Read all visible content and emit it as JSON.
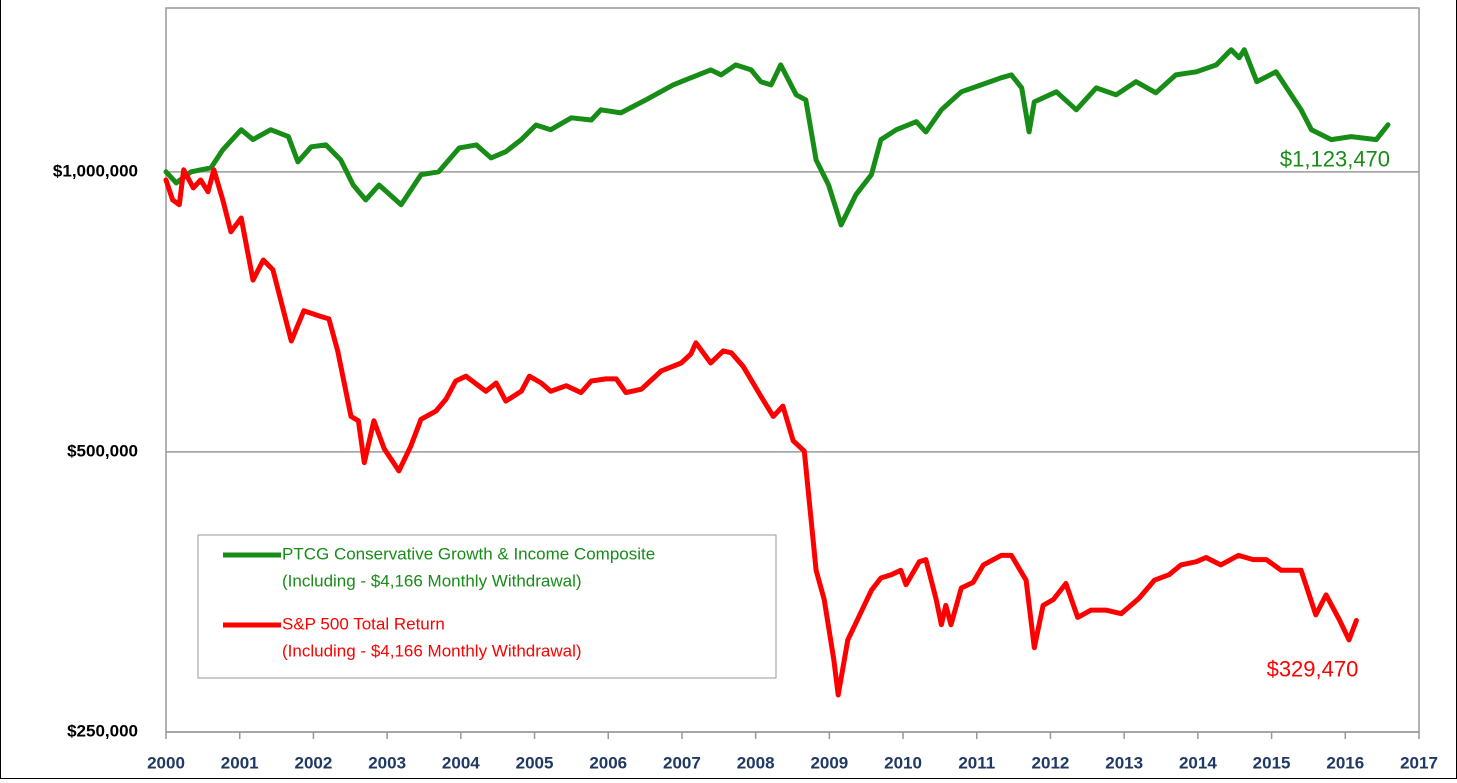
{
  "chart_data": {
    "type": "line",
    "log_scale": true,
    "grid": true,
    "legend": "lower left",
    "xlim": [
      2000,
      2017
    ],
    "xticks": [
      2000,
      2001,
      2002,
      2003,
      2004,
      2005,
      2006,
      2007,
      2008,
      2009,
      2010,
      2011,
      2012,
      2013,
      2014,
      2015,
      2016,
      2017
    ],
    "ylim": [
      250000,
      1500000
    ],
    "yticks": [
      {
        "value": 250000,
        "label": "$250,000"
      },
      {
        "value": 500000,
        "label": "$500,000"
      },
      {
        "value": 1000000,
        "label": "$1,000,000"
      }
    ],
    "series": [
      {
        "name": "PTCG Conservative Growth & Income Composite",
        "description": "(Including - $4,166 Monthly Withdrawal)",
        "color": "#178c17",
        "end_label": "$1,123,470",
        "x": [
          2000.0,
          2000.14,
          2000.34,
          2000.61,
          2000.77,
          2001.02,
          2001.18,
          2001.42,
          2001.66,
          2001.79,
          2001.97,
          2002.17,
          2002.37,
          2002.54,
          2002.71,
          2002.89,
          2003.19,
          2003.46,
          2003.7,
          2003.98,
          2004.21,
          2004.41,
          2004.61,
          2004.82,
          2005.02,
          2005.22,
          2005.5,
          2005.77,
          2005.9,
          2006.17,
          2006.51,
          2006.88,
          2007.12,
          2007.39,
          2007.53,
          2007.73,
          2007.94,
          2008.07,
          2008.21,
          2008.34,
          2008.55,
          2008.68,
          2008.82,
          2008.99,
          2009.16,
          2009.36,
          2009.57,
          2009.7,
          2009.91,
          2010.18,
          2010.31,
          2010.52,
          2010.79,
          2011.06,
          2011.33,
          2011.47,
          2011.61,
          2011.71,
          2011.78,
          2012.08,
          2012.35,
          2012.62,
          2012.89,
          2013.16,
          2013.43,
          2013.7,
          2013.98,
          2014.25,
          2014.45,
          2014.56,
          2014.63,
          2014.8,
          2015.06,
          2015.4,
          2015.54,
          2015.81,
          2016.08,
          2016.42,
          2016.58
        ],
        "values": [
          1000000,
          973000,
          1000000,
          1010000,
          1056000,
          1110000,
          1083000,
          1110000,
          1091000,
          1025000,
          1064000,
          1069000,
          1030000,
          968000,
          933000,
          968000,
          922000,
          993000,
          1000000,
          1061000,
          1069000,
          1035000,
          1051000,
          1083000,
          1123000,
          1110000,
          1143000,
          1137000,
          1166000,
          1157000,
          1195000,
          1240000,
          1262000,
          1287000,
          1271000,
          1303000,
          1287000,
          1250000,
          1240000,
          1303000,
          1210000,
          1195000,
          1030000,
          968000,
          877000,
          945000,
          993000,
          1083000,
          1110000,
          1132000,
          1104000,
          1166000,
          1219000,
          1240000,
          1262000,
          1271000,
          1231000,
          1104000,
          1189000,
          1219000,
          1166000,
          1231000,
          1210000,
          1250000,
          1216000,
          1271000,
          1281000,
          1303000,
          1353000,
          1326000,
          1353000,
          1250000,
          1281000,
          1166000,
          1110000,
          1083000,
          1091000,
          1083000,
          1123470
        ]
      },
      {
        "name": "S&P 500 Total Return",
        "description": "(Including - $4,166 Monthly Withdrawal)",
        "color": "#ff0000",
        "end_label": "$329,470",
        "x": [
          2000.0,
          2000.09,
          2000.18,
          2000.24,
          2000.37,
          2000.47,
          2000.57,
          2000.65,
          2000.77,
          2000.88,
          2001.02,
          2001.18,
          2001.32,
          2001.45,
          2001.7,
          2001.87,
          2002.08,
          2002.21,
          2002.33,
          2002.51,
          2002.61,
          2002.69,
          2002.82,
          2002.96,
          2003.16,
          2003.32,
          2003.46,
          2003.66,
          2003.8,
          2003.93,
          2004.07,
          2004.34,
          2004.48,
          2004.61,
          2004.82,
          2004.93,
          2005.09,
          2005.22,
          2005.43,
          2005.63,
          2005.77,
          2005.97,
          2006.11,
          2006.24,
          2006.45,
          2006.72,
          2006.99,
          2007.12,
          2007.19,
          2007.39,
          2007.56,
          2007.67,
          2007.83,
          2008.07,
          2008.24,
          2008.37,
          2008.51,
          2008.66,
          2008.82,
          2008.93,
          2009.06,
          2009.12,
          2009.25,
          2009.38,
          2009.57,
          2009.7,
          2009.84,
          2009.97,
          2010.04,
          2010.22,
          2010.31,
          2010.45,
          2010.52,
          2010.58,
          2010.65,
          2010.79,
          2010.95,
          2011.09,
          2011.33,
          2011.47,
          2011.67,
          2011.78,
          2011.9,
          2012.04,
          2012.21,
          2012.37,
          2012.55,
          2012.75,
          2012.96,
          2013.2,
          2013.41,
          2013.61,
          2013.77,
          2013.98,
          2014.11,
          2014.31,
          2014.55,
          2014.75,
          2014.93,
          2015.13,
          2015.4,
          2015.6,
          2015.74,
          2015.92,
          2016.05,
          2016.15
        ],
        "values": [
          980000,
          933000,
          922000,
          1005000,
          961000,
          980000,
          952000,
          1005000,
          933000,
          862000,
          892000,
          765000,
          804000,
          785000,
          658000,
          709000,
          700000,
          695000,
          642000,
          546000,
          540000,
          487000,
          540000,
          504000,
          477000,
          507000,
          542000,
          553000,
          570000,
          596000,
          603000,
          581000,
          593000,
          567000,
          581000,
          603000,
          593000,
          581000,
          589000,
          579000,
          596000,
          599000,
          599000,
          579000,
          584000,
          611000,
          623000,
          637000,
          655000,
          623000,
          642000,
          639000,
          618000,
          574000,
          546000,
          560000,
          514000,
          501000,
          373000,
          347000,
          299000,
          274000,
          314000,
          330000,
          355000,
          366000,
          369000,
          373000,
          360000,
          381000,
          383000,
          347000,
          326000,
          342000,
          326000,
          357000,
          362000,
          378000,
          387000,
          387000,
          364000,
          308000,
          342000,
          347000,
          361000,
          332000,
          338000,
          338000,
          335000,
          348000,
          364000,
          369000,
          378000,
          381000,
          385000,
          378000,
          387000,
          383000,
          383000,
          373000,
          373000,
          334000,
          351000,
          330000,
          314000,
          329470
        ]
      }
    ]
  }
}
